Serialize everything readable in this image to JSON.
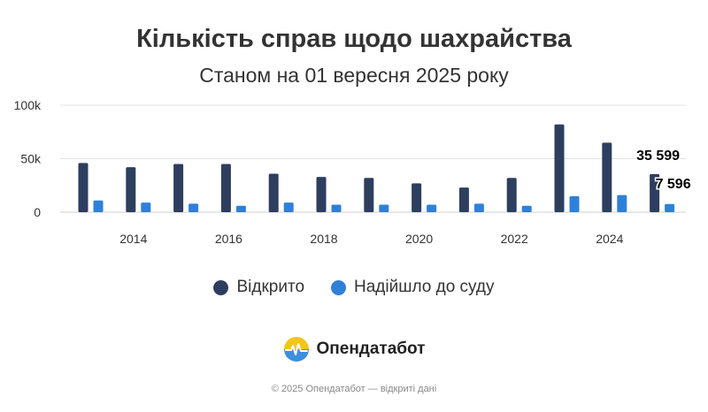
{
  "header": {
    "title": "Кількість справ щодо шахрайства",
    "subtitle": "Станом на 01 вересня 2025 року"
  },
  "legend": {
    "items": [
      {
        "label": "Відкрито",
        "color": "#2d3e5f"
      },
      {
        "label": "Надійшло до суду",
        "color": "#2f80d9"
      }
    ]
  },
  "brand": {
    "name": "Опендатабот",
    "icon": "opendatabot-logo-icon"
  },
  "footer": {
    "text": "© 2025 Опендатабот — відкриті дані"
  },
  "chart_data": {
    "type": "bar",
    "categories": [
      2013,
      2014,
      2015,
      2016,
      2017,
      2018,
      2019,
      2020,
      2021,
      2022,
      2023,
      2024,
      2025
    ],
    "series": [
      {
        "name": "Відкрито",
        "color": "#2d3e5f",
        "values": [
          46000,
          42000,
          45000,
          45000,
          36000,
          33000,
          32000,
          27000,
          23000,
          32000,
          82000,
          65000,
          35599
        ]
      },
      {
        "name": "Надійшло до суду",
        "color": "#2f80d9",
        "values": [
          11000,
          9000,
          8000,
          6000,
          9000,
          7000,
          7000,
          7000,
          8000,
          6000,
          15000,
          16000,
          7596
        ]
      }
    ],
    "ylim": [
      0,
      100000
    ],
    "yticks": [
      {
        "value": 0,
        "label": "0"
      },
      {
        "value": 50000,
        "label": "50k"
      },
      {
        "value": 100000,
        "label": "100k"
      }
    ],
    "xticks": [
      "2014",
      "2016",
      "2018",
      "2020",
      "2022",
      "2024"
    ],
    "data_labels": [
      {
        "series": 0,
        "index": 12,
        "label": "35 599"
      },
      {
        "series": 1,
        "index": 12,
        "label": "7 596"
      }
    ],
    "grid": true,
    "legend_position": "bottom",
    "title": "Кількість справ щодо шахрайства",
    "xlabel": "",
    "ylabel": ""
  }
}
